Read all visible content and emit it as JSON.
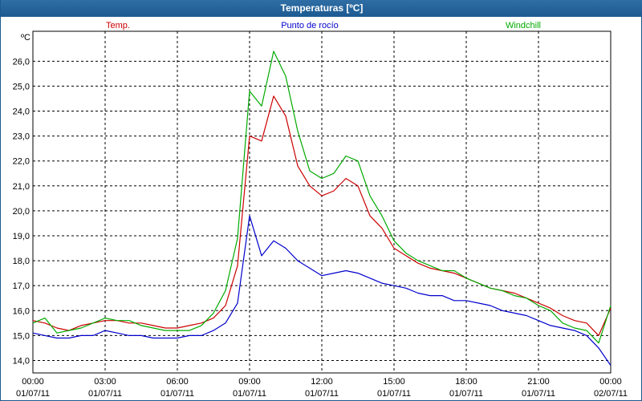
{
  "window": {
    "title": "Temperaturas [ºC]"
  },
  "chart_data": {
    "type": "line",
    "title": "Temperaturas [ºC]",
    "ylabel": "ºC",
    "xlabel": "",
    "ylim": [
      13.5,
      27.2
    ],
    "xlim": [
      0,
      24
    ],
    "grid": true,
    "legend_position": "top",
    "yticks": [
      14.0,
      15.0,
      16.0,
      17.0,
      18.0,
      19.0,
      20.0,
      21.0,
      22.0,
      23.0,
      24.0,
      25.0,
      26.0
    ],
    "yticklabels": [
      "14,0",
      "15,0",
      "16,0",
      "17,0",
      "18,0",
      "19,0",
      "20,0",
      "21,0",
      "22,0",
      "23,0",
      "24,0",
      "25,0",
      "26,0"
    ],
    "xticks": [
      0,
      3,
      6,
      9,
      12,
      15,
      18,
      21,
      24
    ],
    "xticklabels": [
      {
        "time": "00:00",
        "date": "01/07/11"
      },
      {
        "time": "03:00",
        "date": "01/07/11"
      },
      {
        "time": "06:00",
        "date": "01/07/11"
      },
      {
        "time": "09:00",
        "date": "01/07/11"
      },
      {
        "time": "12:00",
        "date": "01/07/11"
      },
      {
        "time": "15:00",
        "date": "01/07/11"
      },
      {
        "time": "18:00",
        "date": "01/07/11"
      },
      {
        "time": "21:00",
        "date": "01/07/11"
      },
      {
        "time": "00:00",
        "date": "02/07/11"
      }
    ],
    "x": [
      0,
      0.5,
      1,
      1.5,
      2,
      2.5,
      3,
      3.5,
      4,
      4.5,
      5,
      5.5,
      6,
      6.5,
      7,
      7.5,
      8,
      8.5,
      9,
      9.5,
      10,
      10.5,
      11,
      11.5,
      12,
      12.5,
      13,
      13.5,
      14,
      14.5,
      15,
      15.5,
      16,
      16.5,
      17,
      17.5,
      18,
      18.5,
      19,
      19.5,
      20,
      20.5,
      21,
      21.5,
      22,
      22.5,
      23,
      23.5,
      24
    ],
    "series": [
      {
        "name": "Temp.",
        "color": "#cc0000",
        "values": [
          15.6,
          15.5,
          15.3,
          15.2,
          15.4,
          15.5,
          15.6,
          15.6,
          15.5,
          15.5,
          15.4,
          15.3,
          15.3,
          15.4,
          15.5,
          15.7,
          16.2,
          17.8,
          23.0,
          22.8,
          24.6,
          23.8,
          21.8,
          21.0,
          20.6,
          20.8,
          21.3,
          21.0,
          19.8,
          19.3,
          18.5,
          18.2,
          17.9,
          17.7,
          17.6,
          17.5,
          17.3,
          17.1,
          16.9,
          16.8,
          16.7,
          16.5,
          16.3,
          16.1,
          15.8,
          15.6,
          15.5,
          15.0,
          16.1
        ]
      },
      {
        "name": "Punto de rocío",
        "color": "#0000cc",
        "values": [
          15.1,
          15.0,
          14.9,
          14.9,
          15.0,
          15.0,
          15.2,
          15.1,
          15.0,
          15.0,
          14.9,
          14.9,
          14.9,
          15.0,
          15.0,
          15.2,
          15.5,
          16.3,
          19.8,
          18.2,
          18.8,
          18.5,
          18.0,
          17.7,
          17.4,
          17.5,
          17.6,
          17.5,
          17.3,
          17.1,
          17.0,
          16.9,
          16.7,
          16.6,
          16.6,
          16.4,
          16.4,
          16.3,
          16.2,
          16.0,
          15.9,
          15.8,
          15.6,
          15.4,
          15.3,
          15.2,
          15.0,
          14.5,
          13.8
        ]
      },
      {
        "name": "Windchill",
        "color": "#00aa00",
        "values": [
          15.5,
          15.7,
          15.1,
          15.2,
          15.3,
          15.5,
          15.7,
          15.6,
          15.6,
          15.4,
          15.3,
          15.2,
          15.2,
          15.2,
          15.4,
          15.9,
          16.8,
          18.9,
          24.8,
          24.2,
          26.4,
          25.4,
          23.2,
          21.6,
          21.3,
          21.5,
          22.2,
          22.0,
          20.6,
          19.8,
          18.8,
          18.3,
          18.0,
          17.8,
          17.6,
          17.6,
          17.3,
          17.1,
          16.9,
          16.8,
          16.6,
          16.5,
          16.2,
          16.0,
          15.5,
          15.3,
          15.2,
          14.7,
          16.2
        ]
      }
    ]
  }
}
